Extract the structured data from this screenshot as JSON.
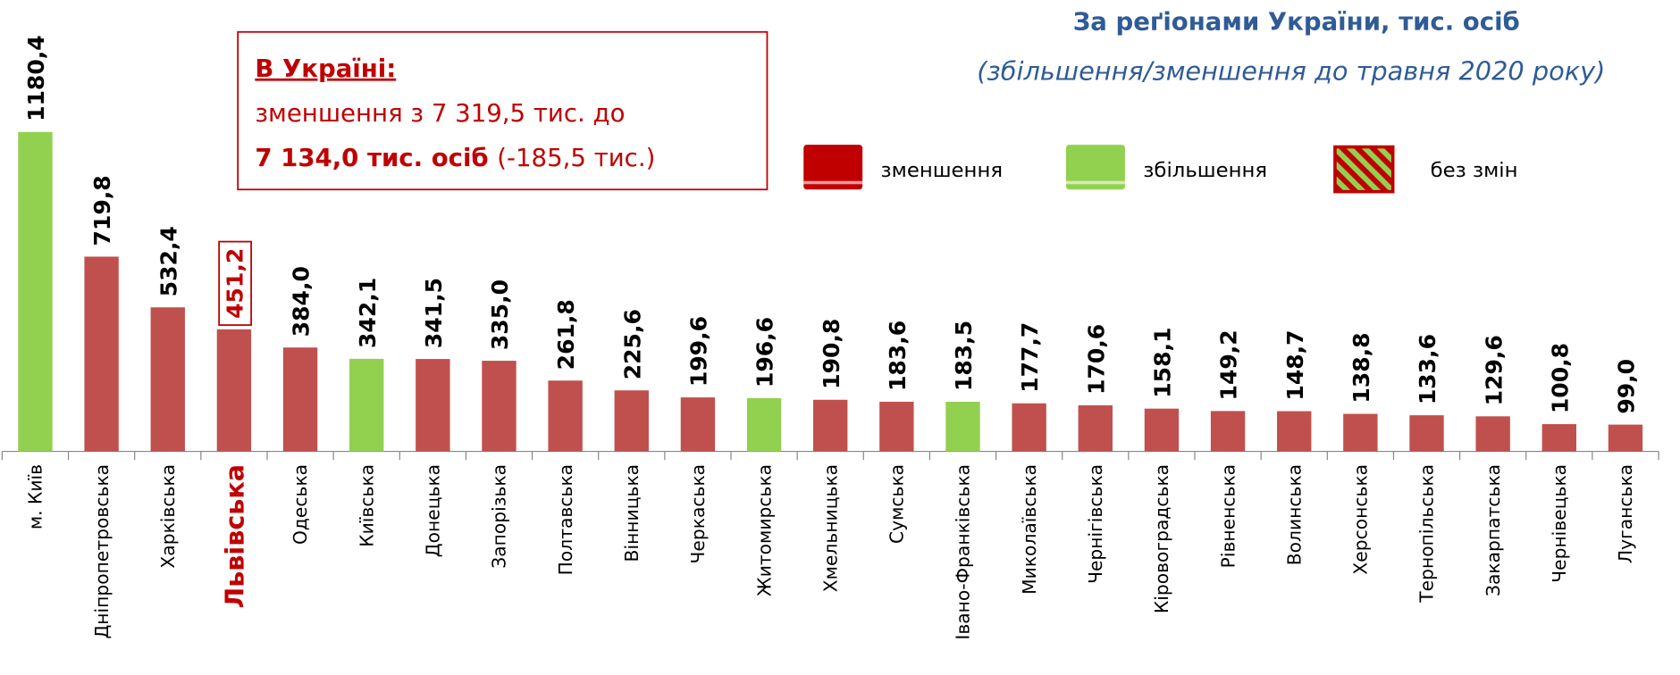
{
  "chart_data": {
    "type": "bar",
    "title": "За реґіонами України, тис. осіб",
    "subtitle": "(збільшення/зменшення до травня 2020 року)",
    "annotation": {
      "heading": "В Україні:",
      "line1": "зменшення з 7 319,5 тис. до",
      "line2_bold": "7 134,0 тис. осіб",
      "line2_rest": "(-185,5 тис.)"
    },
    "categories": [
      "м. Київ",
      "Дніпропетровська",
      "Харківська",
      "Львівська",
      "Одеська",
      "Київська",
      "Донецька",
      "Запорізька",
      "Полтавська",
      "Вінницька",
      "Черкаська",
      "Житомирська",
      "Хмельницька",
      "Сумська",
      "Івано-Франківська",
      "Миколаївська",
      "Чернігівська",
      "Кіровоградська",
      "Рівненська",
      "Волинська",
      "Херсонська",
      "Тернопільська",
      "Закарпатська",
      "Чернівецька",
      "Луганська"
    ],
    "values": [
      1180.4,
      719.8,
      532.4,
      451.2,
      384.0,
      342.1,
      341.5,
      335.0,
      261.8,
      225.6,
      199.6,
      196.6,
      190.8,
      183.6,
      183.5,
      177.7,
      170.6,
      158.1,
      149.2,
      148.7,
      138.8,
      133.6,
      129.6,
      100.8,
      99.0
    ],
    "value_labels": [
      "1180,4",
      "719,8",
      "532,4",
      "451,2",
      "384,0",
      "342,1",
      "341,5",
      "335,0",
      "261,8",
      "225,6",
      "199,6",
      "196,6",
      "190,8",
      "183,6",
      "183,5",
      "177,7",
      "170,6",
      "158,1",
      "149,2",
      "148,7",
      "138,8",
      "133,6",
      "129,6",
      "100,8",
      "99,0"
    ],
    "colors": [
      "#92d050",
      "#c0504d",
      "#c0504d",
      "#c0504d",
      "#c0504d",
      "#92d050",
      "#c0504d",
      "#c0504d",
      "#c0504d",
      "#c0504d",
      "#c0504d",
      "#92d050",
      "#c0504d",
      "#c0504d",
      "#92d050",
      "#c0504d",
      "#c0504d",
      "#c0504d",
      "#c0504d",
      "#c0504d",
      "#c0504d",
      "#c0504d",
      "#c0504d",
      "#c0504d",
      "#c0504d"
    ],
    "highlight_index": 3,
    "legend": [
      {
        "name": "зменшення",
        "color": "#c00000"
      },
      {
        "name": "збільшення",
        "color": "#92d050"
      },
      {
        "name": "без змін",
        "color": "#c00000",
        "pattern": "hatch",
        "hatch_color": "#92d050"
      }
    ],
    "ylim": [
      0,
      1200
    ]
  }
}
